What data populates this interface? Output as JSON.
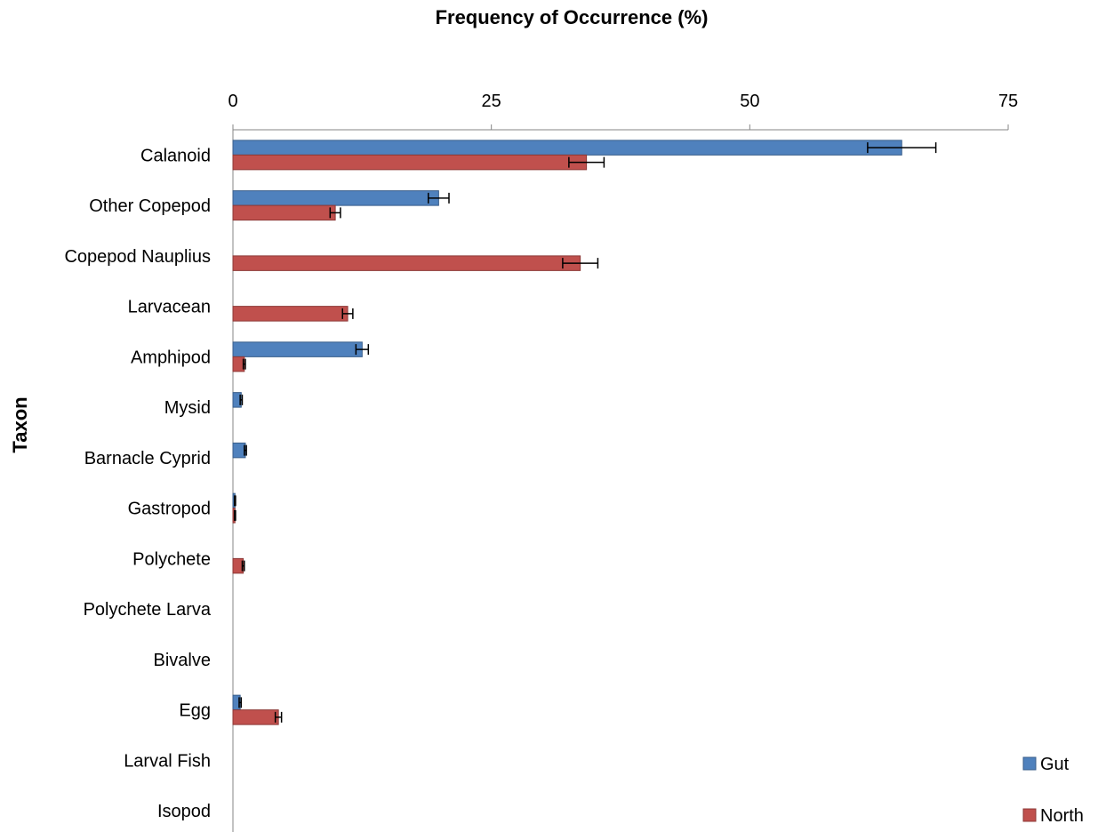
{
  "chart_data": {
    "type": "bar",
    "orientation": "horizontal",
    "title": "Frequency of Occurrence (%)",
    "xlabel": "",
    "ylabel": "Taxon",
    "xlim": [
      0,
      75
    ],
    "xticks": [
      "0",
      "25",
      "50",
      "75"
    ],
    "x_axis_position": "top",
    "grid": false,
    "legend_position": "bottom-right",
    "categories": [
      "Calanoid",
      "Other Copepod",
      "Copepod Nauplius",
      "Larvacean",
      "Amphipod",
      "Mysid",
      "Barnacle Cyprid",
      "Gastropod",
      "Polychete",
      "Polychete Larva",
      "Bivalve",
      "Egg",
      "Larval Fish",
      "Isopod"
    ],
    "series": [
      {
        "name": "Gut",
        "color": "#4F81BD",
        "values": [
          64.7,
          19.9,
          0,
          0,
          12.5,
          0.8,
          1.2,
          0.2,
          0,
          0,
          0,
          0.7,
          0,
          0
        ],
        "errors": [
          3.3,
          1.0,
          0,
          0,
          0.6,
          0.1,
          0.1,
          0.05,
          0,
          0,
          0,
          0.1,
          0,
          0
        ]
      },
      {
        "name": "North",
        "color": "#C0504D",
        "values": [
          34.2,
          9.9,
          33.6,
          11.1,
          1.1,
          0,
          0,
          0.2,
          1.0,
          0,
          0,
          4.4,
          0,
          0
        ],
        "errors": [
          1.7,
          0.5,
          1.7,
          0.5,
          0.1,
          0,
          0,
          0.05,
          0.1,
          0,
          0,
          0.3,
          0,
          0
        ]
      }
    ]
  }
}
